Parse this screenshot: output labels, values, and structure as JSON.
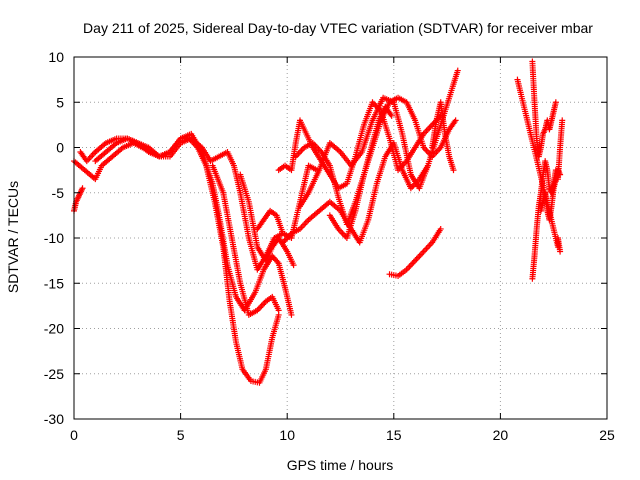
{
  "chart_data": {
    "type": "scatter",
    "title": "Day 211 of 2025, Sidereal Day-to-day VTEC variation (SDTVAR) for receiver mbar",
    "xlabel": "GPS time / hours",
    "ylabel": "SDTVAR / TECUs",
    "xlim": [
      0,
      25
    ],
    "ylim": [
      -30,
      10
    ],
    "xticks": [
      0,
      5,
      10,
      15,
      20,
      25
    ],
    "yticks": [
      -30,
      -25,
      -20,
      -15,
      -10,
      -5,
      0,
      5,
      10
    ],
    "grid": true,
    "marker": "+",
    "color": "#ff0000",
    "tracks": [
      {
        "x": [
          0.0,
          0.1,
          0.2,
          0.3,
          0.4
        ],
        "y": [
          -7.0,
          -6.0,
          -5.5,
          -5.0,
          -4.5
        ]
      },
      {
        "x": [
          0.0,
          0.5,
          1.0,
          1.3,
          1.8,
          2.3,
          2.8,
          3.2,
          3.6,
          4.0,
          4.5,
          5.0,
          5.5,
          6.0,
          6.5,
          6.8,
          7.2,
          7.6,
          8.0,
          8.5,
          8.9,
          9.3,
          9.6,
          9.9,
          10.2
        ],
        "y": [
          -1.5,
          -2.5,
          -3.5,
          -2.0,
          -1.0,
          0.0,
          0.5,
          0.0,
          -0.5,
          -1.0,
          -0.5,
          1.0,
          1.5,
          -0.5,
          -4.0,
          -7.5,
          -13.0,
          -16.5,
          -18.0,
          -16.0,
          -13.5,
          -12.0,
          -12.8,
          -15.5,
          -18.5
        ]
      },
      {
        "x": [
          0.3,
          0.6,
          1.0,
          1.5,
          2.0,
          2.5,
          3.0,
          3.5,
          4.0,
          4.5,
          5.0,
          5.4,
          5.8,
          6.2,
          6.6,
          7.0,
          7.3,
          7.6,
          7.9,
          8.3,
          8.7,
          9.0,
          9.3,
          9.6
        ],
        "y": [
          -0.5,
          -1.5,
          -0.5,
          0.5,
          1.0,
          1.0,
          0.5,
          -0.5,
          -1.0,
          -0.5,
          1.0,
          1.0,
          0.0,
          -2.0,
          -6.0,
          -11.0,
          -17.0,
          -21.5,
          -24.5,
          -25.8,
          -26.0,
          -24.5,
          -21.0,
          -18.5
        ]
      },
      {
        "x": [
          1.0,
          1.5,
          2.0,
          2.5,
          3.0,
          3.5,
          4.0,
          4.5,
          5.0,
          5.5,
          6.0,
          6.4,
          6.8,
          7.2,
          7.5,
          7.8,
          8.2,
          8.6,
          9.0,
          9.4,
          9.8
        ],
        "y": [
          -1.5,
          -0.5,
          0.5,
          1.0,
          0.5,
          0.0,
          -1.0,
          -1.0,
          0.5,
          1.0,
          0.0,
          -1.5,
          -1.0,
          -0.5,
          -2.0,
          -5.0,
          -10.0,
          -13.5,
          -12.0,
          -10.0,
          -9.5
        ]
      },
      {
        "x": [
          6.5,
          7.0,
          7.4,
          7.8,
          8.2,
          8.6,
          9.0,
          9.3,
          9.6
        ],
        "y": [
          -2.0,
          -5.0,
          -10.0,
          -15.0,
          -18.5,
          -18.0,
          -17.0,
          -16.5,
          -18.0
        ]
      },
      {
        "x": [
          7.8,
          8.2,
          8.6,
          9.0,
          9.3,
          9.6,
          10.0,
          10.3
        ],
        "y": [
          -3.0,
          -6.0,
          -11.0,
          -12.5,
          -11.0,
          -10.0,
          -11.5,
          -13.0
        ]
      },
      {
        "x": [
          8.6,
          8.9,
          9.2,
          9.5,
          9.8,
          10.2,
          10.6,
          11.0,
          11.4
        ],
        "y": [
          -9.0,
          -8.0,
          -7.0,
          -7.5,
          -9.5,
          -10.0,
          -6.0,
          -2.0,
          -2.5
        ]
      },
      {
        "x": [
          9.6,
          9.9,
          10.2,
          10.4,
          10.6,
          10.9,
          11.2,
          11.6,
          12.0,
          12.4,
          12.8,
          13.2,
          13.6,
          14.0,
          14.4,
          14.8,
          15.2,
          15.6,
          16.0,
          16.4,
          16.8,
          17.2
        ],
        "y": [
          -2.5,
          -2.0,
          -2.5,
          0.5,
          3.0,
          1.5,
          0.0,
          -1.5,
          -3.0,
          -4.5,
          -4.0,
          -1.0,
          2.5,
          5.0,
          4.0,
          1.0,
          -2.5,
          -1.5,
          0.0,
          1.5,
          2.5,
          3.5
        ]
      },
      {
        "x": [
          9.8,
          10.2,
          10.6,
          11.0,
          11.5,
          12.0,
          12.5,
          13.0,
          13.4,
          13.8,
          14.2,
          14.6,
          15.0,
          15.4,
          15.8,
          16.2,
          16.6
        ],
        "y": [
          -10.5,
          -9.5,
          -9.0,
          -8.0,
          -7.0,
          -6.0,
          -7.0,
          -9.0,
          -10.5,
          -8.0,
          -4.0,
          -1.0,
          0.5,
          -2.5,
          -4.5,
          -3.5,
          -2.0
        ]
      },
      {
        "x": [
          10.4,
          10.8,
          11.2,
          11.6,
          12.0,
          12.4,
          12.8,
          13.2,
          13.6,
          14.0,
          14.3,
          14.6,
          14.9
        ],
        "y": [
          -1.0,
          0.0,
          0.5,
          -0.5,
          -2.0,
          -5.5,
          -8.5,
          -6.0,
          -3.0,
          0.5,
          3.0,
          4.5,
          3.5
        ]
      },
      {
        "x": [
          10.6,
          11.0,
          11.5,
          12.0,
          12.5,
          13.0,
          13.5,
          14.0,
          14.5,
          15.0,
          15.4,
          15.8,
          16.2,
          16.6,
          17.0,
          17.4,
          17.8,
          18.0
        ],
        "y": [
          -6.5,
          -5.0,
          -2.5,
          0.5,
          -0.5,
          -2.0,
          -0.5,
          3.0,
          5.5,
          5.0,
          1.5,
          -3.0,
          -4.5,
          -2.0,
          1.0,
          4.0,
          7.0,
          8.5
        ]
      },
      {
        "x": [
          12.0,
          12.4,
          12.8,
          13.2,
          13.6,
          14.0,
          14.4,
          14.8,
          15.2,
          15.6,
          16.0,
          16.4,
          16.8,
          17.2,
          17.6,
          17.9
        ],
        "y": [
          -7.5,
          -9.0,
          -10.0,
          -7.0,
          -3.0,
          0.0,
          3.0,
          5.0,
          5.5,
          5.0,
          3.0,
          0.0,
          -1.0,
          0.0,
          2.0,
          3.0
        ]
      },
      {
        "x": [
          14.8,
          15.2,
          15.6,
          16.0,
          16.4,
          16.8,
          17.2
        ],
        "y": [
          -14.0,
          -14.2,
          -13.5,
          -12.5,
          -11.5,
          -10.5,
          -9.0
        ]
      },
      {
        "x": [
          16.8,
          17.0,
          17.2,
          17.4,
          17.6,
          17.8
        ],
        "y": [
          0.0,
          3.0,
          5.0,
          1.5,
          -1.0,
          -2.5
        ]
      },
      {
        "x": [
          21.5,
          21.6,
          21.7,
          21.8,
          21.9,
          22.0,
          22.1,
          22.2,
          22.3,
          22.4,
          22.5,
          22.6
        ],
        "y": [
          9.5,
          5.0,
          1.0,
          -1.0,
          0.0,
          1.5,
          2.0,
          3.0,
          2.0,
          3.0,
          4.0,
          5.0
        ]
      },
      {
        "x": [
          21.5,
          21.6,
          21.7,
          21.8,
          21.9,
          22.0,
          22.1,
          22.2,
          22.3,
          22.4,
          22.5,
          22.6,
          22.7,
          22.8,
          22.9
        ],
        "y": [
          -14.5,
          -12.0,
          -9.0,
          -6.5,
          -5.0,
          -3.0,
          -1.5,
          -2.5,
          -4.5,
          -5.0,
          -4.0,
          -2.5,
          -3.5,
          0.0,
          3.0
        ]
      },
      {
        "x": [
          21.9,
          22.0,
          22.1,
          22.2,
          22.3,
          22.4,
          22.5,
          22.6,
          22.7,
          22.8
        ],
        "y": [
          -7.0,
          -6.0,
          -5.0,
          -7.0,
          -8.0,
          -6.5,
          -4.5,
          -3.5,
          -2.5,
          -3.0
        ]
      },
      {
        "x": [
          20.8,
          22.7,
          22.7,
          22.8
        ],
        "y": [
          7.5,
          -11.0,
          -10.0,
          -11.5
        ]
      }
    ]
  }
}
